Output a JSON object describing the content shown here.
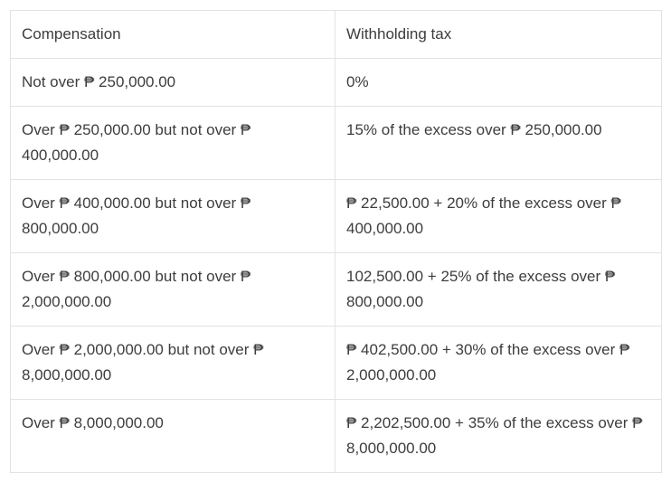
{
  "table": {
    "headers": {
      "compensation": "Compensation",
      "withholding": "Withholding tax"
    },
    "rows": [
      {
        "compensation": "Not over ₱ 250,000.00",
        "withholding": "0%"
      },
      {
        "compensation": "Over ₱ 250,000.00 but not over ₱ 400,000.00",
        "withholding": "15% of the excess over ₱ 250,000.00"
      },
      {
        "compensation": "Over ₱ 400,000.00 but not over ₱ 800,000.00",
        "withholding": "₱ 22,500.00 + 20% of the excess over ₱ 400,000.00"
      },
      {
        "compensation": "Over ₱ 800,000.00 but not over ₱ 2,000,000.00",
        "withholding": " 102,500.00 + 25% of the excess over ₱ 800,000.00"
      },
      {
        "compensation": "Over ₱ 2,000,000.00 but not over ₱ 8,000,000.00",
        "withholding": "₱ 402,500.00 + 30% of the excess over ₱ 2,000,000.00"
      },
      {
        "compensation": "Over ₱ 8,000,000.00",
        "withholding": "₱ 2,202,500.00 + 35% of the excess over ₱ 8,000,000.00"
      }
    ]
  }
}
